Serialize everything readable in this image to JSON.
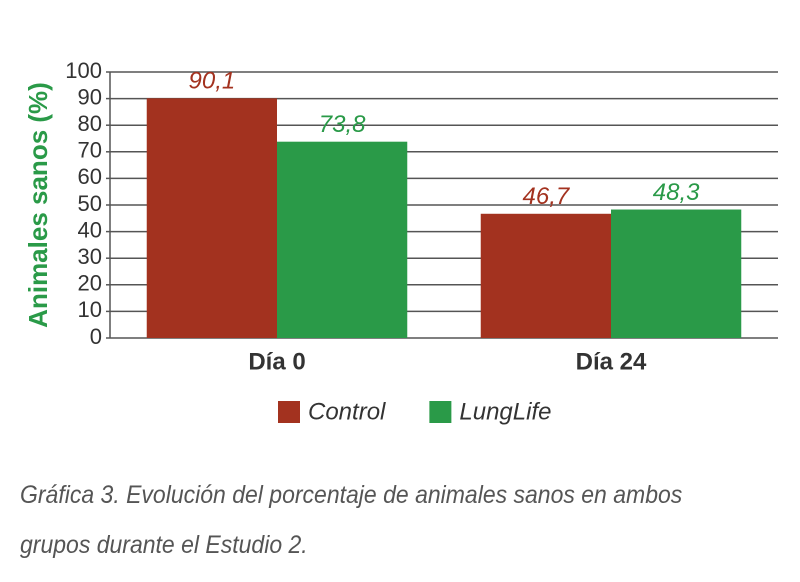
{
  "chart_data": {
    "type": "bar",
    "y_label": "Animales sanos (%)",
    "categories": [
      "Día 0",
      "Día 24"
    ],
    "series": [
      {
        "name": "Control",
        "color": "#a3321f",
        "values": [
          90.1,
          46.7
        ],
        "value_labels": [
          "90,1",
          "46,7"
        ]
      },
      {
        "name": "LungLife",
        "color": "#2a9a48",
        "values": [
          73.8,
          48.3
        ],
        "value_labels": [
          "73,8",
          "48,3"
        ]
      }
    ],
    "ylim": [
      0,
      100
    ],
    "yticks": [
      0,
      10,
      20,
      30,
      40,
      50,
      60,
      70,
      80,
      90,
      100
    ],
    "grid": true
  },
  "caption": "Gráfica 3. Evolución del porcentaje de animales sanos en ambos grupos durante el Estudio 2."
}
